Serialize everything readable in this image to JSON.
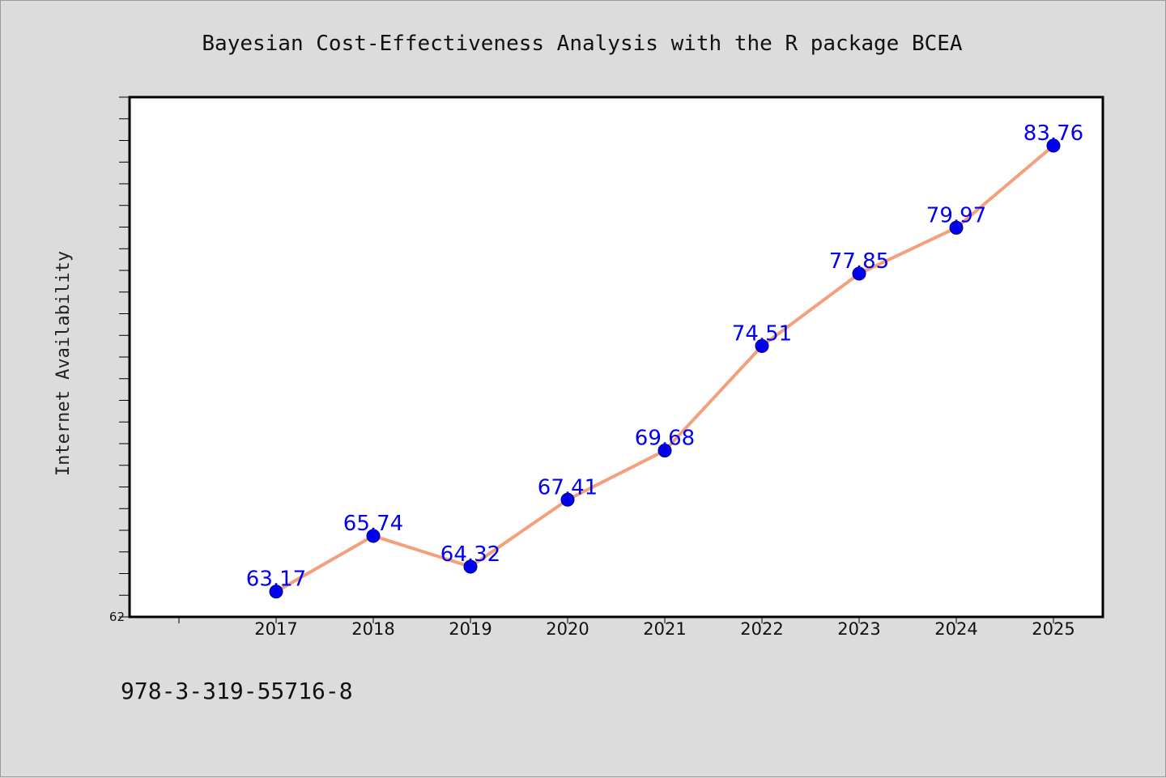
{
  "chart_data": {
    "type": "line",
    "title": "Bayesian Cost-Effectiveness Analysis with the R package BCEA",
    "xlabel": "",
    "ylabel": "Internet Availability",
    "categories": [
      "2017",
      "2018",
      "2019",
      "2020",
      "2021",
      "2022",
      "2023",
      "2024",
      "2025"
    ],
    "series": [
      {
        "values": [
          63.17,
          65.74,
          64.32,
          67.41,
          69.68,
          74.51,
          77.85,
          79.97,
          83.76
        ],
        "labels": [
          "63.17",
          "65.74",
          "64.32",
          "67.41",
          "69.68",
          "74.51",
          "77.85",
          "79.97",
          "83.76"
        ]
      }
    ],
    "ylim": [
      62,
      86
    ],
    "y_tick_labels": [
      "62"
    ],
    "y_minor_tick_step": 1,
    "grid": false,
    "line_color": "#f4a07c",
    "marker_color": "#0000ee",
    "label_color": "#0000ee"
  },
  "footer": {
    "isbn": "978-3-319-55716-8"
  }
}
